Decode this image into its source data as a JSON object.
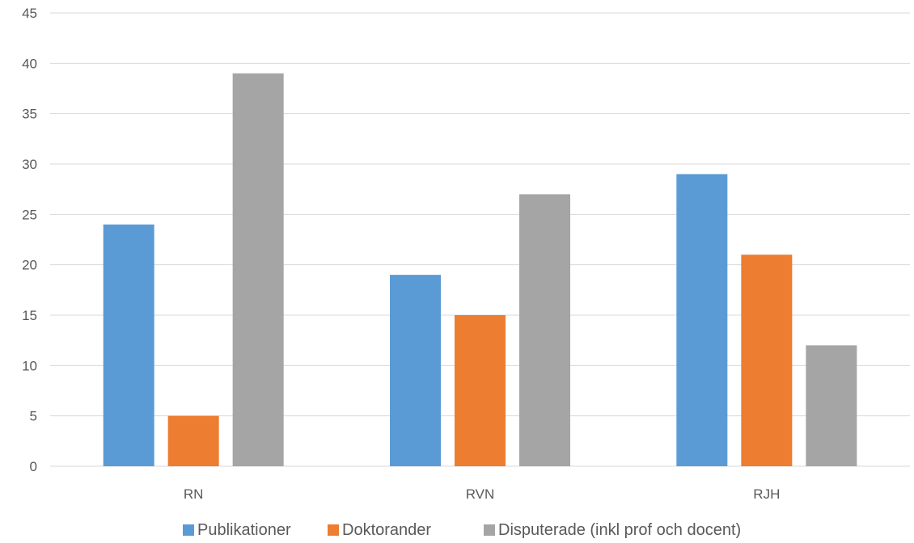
{
  "chart_data": {
    "type": "bar",
    "title": "",
    "xlabel": "",
    "ylabel": "",
    "categories": [
      "RN",
      "RVN",
      "RJH"
    ],
    "series": [
      {
        "name": "Publikationer",
        "values": [
          24,
          19,
          29
        ],
        "color": "#5b9bd5"
      },
      {
        "name": "Doktorander",
        "values": [
          5,
          15,
          21
        ],
        "color": "#ed7d31"
      },
      {
        "name": "Disputerade (inkl prof och docent)",
        "values": [
          39,
          27,
          12
        ],
        "color": "#a5a5a5"
      }
    ],
    "ylim": [
      0,
      45
    ],
    "yticks": [
      "0",
      "5",
      "10",
      "15",
      "20",
      "25",
      "30",
      "35",
      "40",
      "45"
    ],
    "grid": true,
    "legend_position": "bottom"
  }
}
